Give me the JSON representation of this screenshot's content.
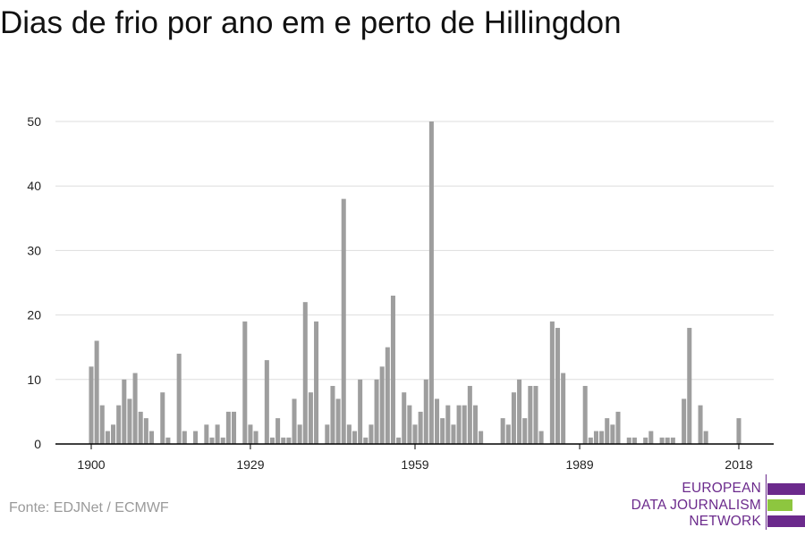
{
  "title": "Dias de frio por ano em e perto de Hillingdon",
  "source": "Fonte: EDJNet / ECMWF",
  "logo": {
    "lines": [
      "EUROPEAN",
      "DATA JOURNALISM",
      "NETWORK"
    ],
    "colors": {
      "text": "#6b2a8c",
      "bar_purple": "#6b2a8c",
      "bar_green": "#8dc63f"
    }
  },
  "colors": {
    "bar": "#9e9e9e",
    "grid": "#dddddd",
    "axis": "#000000",
    "tick_text": "#222222"
  },
  "chart_data": {
    "type": "bar",
    "title": "Dias de frio por ano em e perto de Hillingdon",
    "xlabel": "",
    "ylabel": "",
    "ylim": [
      0,
      50
    ],
    "yticks": [
      0,
      10,
      20,
      30,
      40,
      50
    ],
    "xticks": [
      1900,
      1929,
      1959,
      1989,
      2018
    ],
    "xlim": [
      1900,
      2018
    ],
    "grid": true,
    "x": [
      1900,
      1901,
      1902,
      1903,
      1904,
      1905,
      1906,
      1907,
      1908,
      1909,
      1910,
      1911,
      1912,
      1913,
      1914,
      1915,
      1916,
      1917,
      1918,
      1919,
      1920,
      1921,
      1922,
      1923,
      1924,
      1925,
      1926,
      1927,
      1928,
      1929,
      1930,
      1931,
      1932,
      1933,
      1934,
      1935,
      1936,
      1937,
      1938,
      1939,
      1940,
      1941,
      1942,
      1943,
      1944,
      1945,
      1946,
      1947,
      1948,
      1949,
      1950,
      1951,
      1952,
      1953,
      1954,
      1955,
      1956,
      1957,
      1958,
      1959,
      1960,
      1961,
      1962,
      1963,
      1964,
      1965,
      1966,
      1967,
      1968,
      1969,
      1970,
      1971,
      1972,
      1973,
      1974,
      1975,
      1976,
      1977,
      1978,
      1979,
      1980,
      1981,
      1982,
      1983,
      1984,
      1985,
      1986,
      1987,
      1988,
      1989,
      1990,
      1991,
      1992,
      1993,
      1994,
      1995,
      1996,
      1997,
      1998,
      1999,
      2000,
      2001,
      2002,
      2003,
      2004,
      2005,
      2006,
      2007,
      2008,
      2009,
      2010,
      2011,
      2012,
      2013,
      2014,
      2015,
      2016,
      2017,
      2018
    ],
    "values": [
      12,
      16,
      6,
      2,
      3,
      6,
      10,
      7,
      11,
      5,
      4,
      2,
      0,
      8,
      1,
      0,
      14,
      2,
      0,
      2,
      0,
      3,
      1,
      3,
      1,
      5,
      5,
      0,
      19,
      3,
      2,
      0,
      13,
      1,
      4,
      1,
      1,
      7,
      3,
      22,
      8,
      19,
      0,
      3,
      9,
      7,
      38,
      3,
      2,
      10,
      1,
      3,
      10,
      12,
      15,
      23,
      1,
      8,
      6,
      3,
      5,
      10,
      50,
      7,
      4,
      6,
      3,
      6,
      6,
      9,
      6,
      2,
      0,
      0,
      0,
      4,
      3,
      8,
      10,
      4,
      9,
      9,
      2,
      0,
      19,
      18,
      11,
      0,
      0,
      0,
      9,
      1,
      2,
      2,
      4,
      3,
      5,
      0,
      1,
      1,
      0,
      1,
      2,
      0,
      1,
      1,
      1,
      0,
      7,
      18,
      0,
      6,
      2,
      0,
      0,
      0,
      0,
      0,
      4
    ]
  }
}
